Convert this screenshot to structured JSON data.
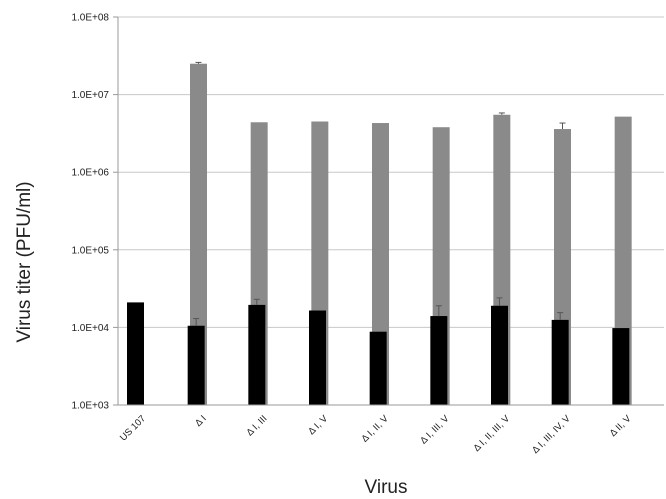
{
  "chart_data": {
    "type": "bar",
    "title": "",
    "xlabel": "Virus",
    "ylabel": "Virus titer (PFU/ml)",
    "scale": "log",
    "ylim": [
      1000,
      100000000
    ],
    "y_tick_labels": [
      "1.0E+03",
      "1.0E+04",
      "1.0E+05",
      "1.0E+06",
      "1.0E+07",
      "1.0E+08"
    ],
    "y_tick_values": [
      1000,
      10000,
      100000,
      1000000,
      10000000,
      100000000
    ],
    "grid": true,
    "categories": [
      "US 107",
      "Δ I",
      "Δ I, III",
      "Δ I, V",
      "Δ I, II, V",
      "Δ I, III, V",
      "Δ I, II, III, V",
      "Δ I, III, IV, V",
      "Δ II, V"
    ],
    "series": [
      {
        "color": "#000000",
        "values": [
          21000,
          10500,
          19500,
          16500,
          8800,
          14000,
          19000,
          12500,
          9800
        ],
        "errors": [
          0,
          2500,
          3500,
          0,
          0,
          5000,
          5000,
          3000,
          0
        ]
      },
      {
        "color": "#8a8a8a",
        "values": [
          25000000,
          4400000,
          4500000,
          4300000,
          3800000,
          5500000,
          3600000,
          5200000,
          6800000
        ],
        "errors": [
          1000000,
          0,
          0,
          0,
          0,
          300000,
          700000,
          0,
          0
        ]
      }
    ]
  }
}
